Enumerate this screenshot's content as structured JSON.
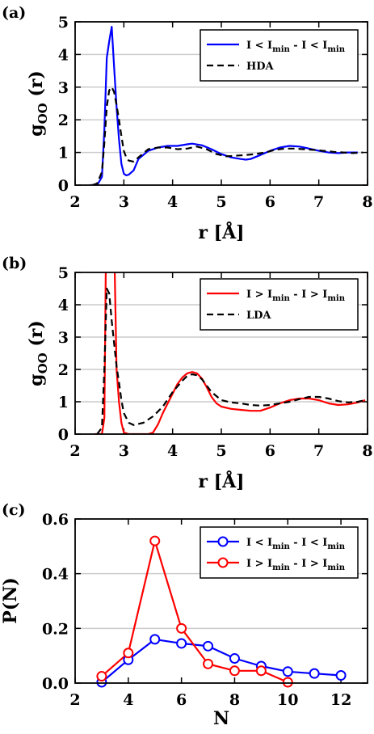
{
  "chart_data": [
    {
      "panel_label": "(a)",
      "type": "line",
      "xlabel": "r [Å]",
      "ylabel": "g",
      "ylabel_sub": "OO",
      "ylabel_suffix": " (r)",
      "xlim": [
        2,
        8
      ],
      "ylim": [
        0,
        5
      ],
      "xticks": [
        2,
        3,
        4,
        5,
        6,
        7,
        8
      ],
      "yticks": [
        0,
        1,
        2,
        3,
        4,
        5
      ],
      "grid": true,
      "legend_position": "top-right",
      "series": [
        {
          "name": "I < I_min - I < I_min",
          "legend": {
            "a": "I < I",
            "a_sub": "min",
            "b": " - I < I",
            "b_sub": "min"
          },
          "color": "#0000ff",
          "dash": "solid",
          "x": [
            2.3,
            2.45,
            2.55,
            2.6,
            2.65,
            2.7,
            2.75,
            2.8,
            2.85,
            2.9,
            2.95,
            3.0,
            3.05,
            3.1,
            3.2,
            3.3,
            3.5,
            3.7,
            3.9,
            4.1,
            4.3,
            4.4,
            4.6,
            4.8,
            5.0,
            5.2,
            5.4,
            5.5,
            5.6,
            5.8,
            6.0,
            6.2,
            6.4,
            6.6,
            6.8,
            7.0,
            7.2,
            7.4,
            7.6,
            7.8
          ],
          "y": [
            0.0,
            0.0,
            0.25,
            1.7,
            3.9,
            4.4,
            4.85,
            3.6,
            2.4,
            1.4,
            0.65,
            0.35,
            0.3,
            0.32,
            0.45,
            0.8,
            1.05,
            1.15,
            1.2,
            1.2,
            1.25,
            1.27,
            1.22,
            1.1,
            0.95,
            0.85,
            0.8,
            0.78,
            0.8,
            0.92,
            1.05,
            1.15,
            1.2,
            1.18,
            1.12,
            1.05,
            1.0,
            0.98,
            1.0,
            1.0
          ]
        },
        {
          "name": "HDA",
          "legend": {
            "a": "HDA"
          },
          "color": "#000000",
          "dash": "dashed",
          "x": [
            2.35,
            2.45,
            2.55,
            2.6,
            2.65,
            2.7,
            2.75,
            2.8,
            2.85,
            2.9,
            2.95,
            3.0,
            3.05,
            3.1,
            3.2,
            3.3,
            3.5,
            3.7,
            3.9,
            4.1,
            4.3,
            4.5,
            4.7,
            4.9,
            5.1,
            5.3,
            5.5,
            5.7,
            5.9,
            6.1,
            6.3,
            6.5,
            6.7,
            6.9,
            7.1,
            7.3,
            7.5,
            7.7,
            7.9
          ],
          "y": [
            0.0,
            0.05,
            0.4,
            1.3,
            2.4,
            2.9,
            3.0,
            2.85,
            2.45,
            2.0,
            1.5,
            1.05,
            0.85,
            0.75,
            0.72,
            0.85,
            1.1,
            1.15,
            1.15,
            1.1,
            1.12,
            1.18,
            1.1,
            0.95,
            0.88,
            0.9,
            0.92,
            0.95,
            1.0,
            1.08,
            1.12,
            1.12,
            1.1,
            1.08,
            1.05,
            1.02,
            1.0,
            0.98,
            1.0
          ]
        }
      ]
    },
    {
      "panel_label": "(b)",
      "type": "line",
      "xlabel": "r [Å]",
      "ylabel": "g",
      "ylabel_sub": "OO",
      "ylabel_suffix": " (r)",
      "xlim": [
        2,
        8
      ],
      "ylim": [
        0,
        5
      ],
      "xticks": [
        2,
        3,
        4,
        5,
        6,
        7,
        8
      ],
      "yticks": [
        0,
        1,
        2,
        3,
        4,
        5
      ],
      "grid": true,
      "legend_position": "top-right",
      "series": [
        {
          "name": "I > I_min - I > I_min",
          "legend": {
            "a": "I > I",
            "a_sub": "min",
            "b": " - I > I",
            "b_sub": "min"
          },
          "color": "#ff0000",
          "dash": "solid",
          "x": [
            2.4,
            2.55,
            2.6,
            2.63,
            2.66,
            2.7,
            2.78,
            2.81,
            2.85,
            2.9,
            2.95,
            3.0,
            3.1,
            3.3,
            3.5,
            3.6,
            3.7,
            3.8,
            3.9,
            4.0,
            4.1,
            4.2,
            4.3,
            4.4,
            4.5,
            4.6,
            4.7,
            4.8,
            4.9,
            5.0,
            5.2,
            5.4,
            5.6,
            5.8,
            6.0,
            6.2,
            6.4,
            6.6,
            6.8,
            7.0,
            7.2,
            7.4,
            7.6,
            7.8,
            7.95
          ],
          "y": [
            0.0,
            0.0,
            0.5,
            5.2,
            5.2,
            5.2,
            5.2,
            5.2,
            2.0,
            1.0,
            0.35,
            0.05,
            0.0,
            0.0,
            0.0,
            0.05,
            0.3,
            0.65,
            0.95,
            1.25,
            1.55,
            1.75,
            1.88,
            1.92,
            1.88,
            1.72,
            1.45,
            1.15,
            0.95,
            0.85,
            0.78,
            0.75,
            0.72,
            0.72,
            0.82,
            0.95,
            1.05,
            1.1,
            1.1,
            1.05,
            0.95,
            0.9,
            0.92,
            0.98,
            1.05
          ]
        },
        {
          "name": "LDA",
          "legend": {
            "a": "LDA"
          },
          "color": "#000000",
          "dash": "dashed",
          "x": [
            2.45,
            2.55,
            2.6,
            2.65,
            2.7,
            2.75,
            2.8,
            2.85,
            2.9,
            2.95,
            3.0,
            3.1,
            3.2,
            3.4,
            3.6,
            3.8,
            4.0,
            4.2,
            4.3,
            4.4,
            4.5,
            4.6,
            4.7,
            4.8,
            5.0,
            5.2,
            5.4,
            5.6,
            5.8,
            6.0,
            6.2,
            6.4,
            6.6,
            6.8,
            7.0,
            7.2,
            7.4,
            7.6,
            7.8,
            7.95
          ],
          "y": [
            0.0,
            0.2,
            2.0,
            4.5,
            4.35,
            3.5,
            2.8,
            2.1,
            1.6,
            1.05,
            0.65,
            0.35,
            0.28,
            0.35,
            0.55,
            0.85,
            1.3,
            1.65,
            1.8,
            1.85,
            1.82,
            1.7,
            1.5,
            1.3,
            1.05,
            0.98,
            0.95,
            0.9,
            0.88,
            0.9,
            0.95,
            1.0,
            1.08,
            1.15,
            1.15,
            1.1,
            1.02,
            0.98,
            1.0,
            1.05
          ]
        }
      ]
    },
    {
      "panel_label": "(c)",
      "type": "line",
      "xlabel": "N",
      "ylabel": "P(N)",
      "ylabel_sub": "",
      "ylabel_suffix": "",
      "xlim": [
        2,
        13
      ],
      "ylim": [
        0,
        0.6
      ],
      "xticks": [
        2,
        4,
        6,
        8,
        10,
        12
      ],
      "yticks": [
        0.0,
        0.2,
        0.4,
        0.6
      ],
      "ytick_labels": [
        "0.0",
        "0.2",
        "0.4",
        "0.6"
      ],
      "grid": true,
      "legend_position": "top-right",
      "series": [
        {
          "name": "I < I_min - I < I_min",
          "legend": {
            "a": "I < I",
            "a_sub": "min",
            "b": " - I < I",
            "b_sub": "min"
          },
          "color": "#0000ff",
          "dash": "solid",
          "markers": true,
          "x": [
            3,
            4,
            5,
            6,
            7,
            8,
            9,
            10,
            11,
            12
          ],
          "y": [
            0.003,
            0.085,
            0.16,
            0.145,
            0.135,
            0.09,
            0.062,
            0.042,
            0.035,
            0.028
          ]
        },
        {
          "name": "I > I_min - I > I_min",
          "legend": {
            "a": "I > I",
            "a_sub": "min",
            "b": " - I > I",
            "b_sub": "min"
          },
          "color": "#ff0000",
          "dash": "solid",
          "markers": true,
          "x": [
            3,
            4,
            5,
            6,
            7,
            8,
            9,
            10
          ],
          "y": [
            0.025,
            0.11,
            0.52,
            0.2,
            0.07,
            0.045,
            0.045,
            0.003
          ]
        }
      ]
    }
  ]
}
